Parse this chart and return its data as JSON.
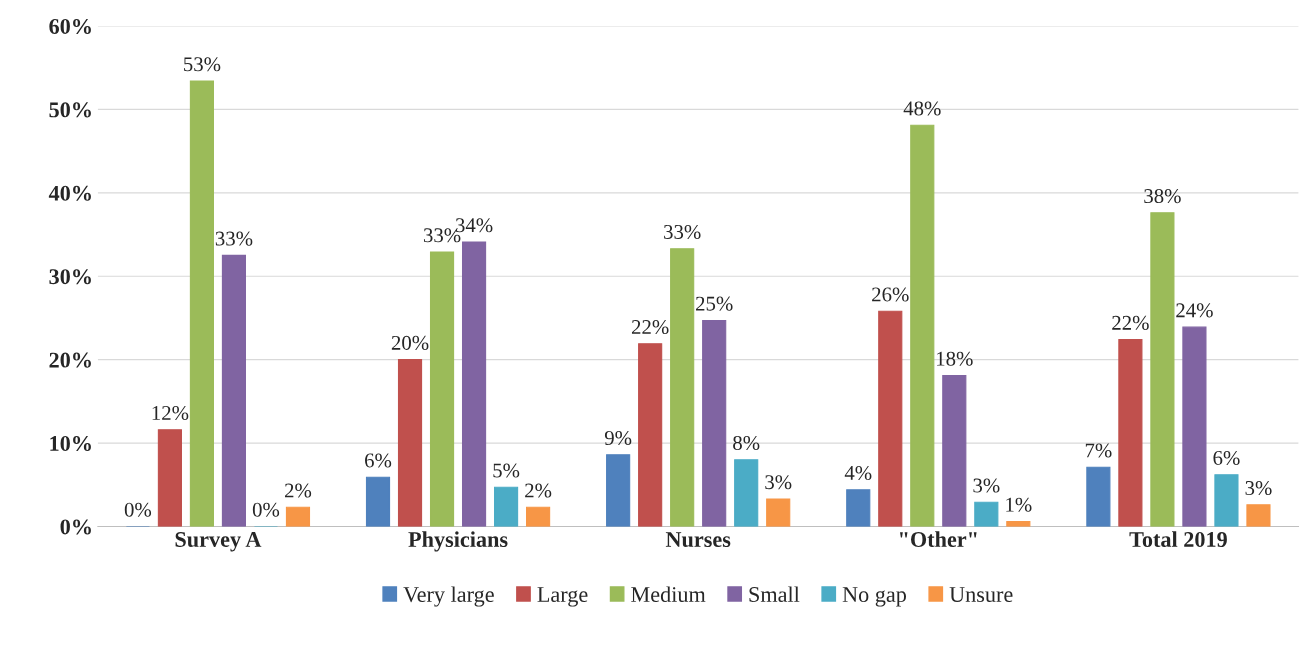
{
  "chart_data": {
    "type": "bar",
    "categories": [
      "Survey A",
      "Physicians",
      "Nurses",
      "\"Other\"",
      "Total 2019"
    ],
    "series": [
      {
        "name": "Very large",
        "color": "#4f81bd",
        "values": [
          0,
          5.9,
          8.6,
          4.4,
          7.1
        ],
        "value_labels": [
          "0%",
          "6%",
          "9%",
          "4%",
          "7%"
        ]
      },
      {
        "name": "Large",
        "color": "#c0504d",
        "values": [
          11.6,
          20.0,
          21.9,
          25.8,
          22.4
        ],
        "value_labels": [
          "12%",
          "20%",
          "22%",
          "26%",
          "22%"
        ]
      },
      {
        "name": "Medium",
        "color": "#9bbb59",
        "values": [
          53.4,
          32.9,
          33.3,
          48.1,
          37.6
        ],
        "value_labels": [
          "53%",
          "33%",
          "33%",
          "48%",
          "38%"
        ]
      },
      {
        "name": "Small",
        "color": "#8064a2",
        "values": [
          32.5,
          34.1,
          24.7,
          18.1,
          23.9
        ],
        "value_labels": [
          "33%",
          "34%",
          "25%",
          "18%",
          "24%"
        ]
      },
      {
        "name": "No gap",
        "color": "#4bacc6",
        "values": [
          0,
          4.7,
          8.0,
          2.9,
          6.2
        ],
        "value_labels": [
          "0%",
          "5%",
          "8%",
          "3%",
          "6%"
        ]
      },
      {
        "name": "Unsure",
        "color": "#f79646",
        "values": [
          2.3,
          2.3,
          3.3,
          0.6,
          2.6
        ],
        "value_labels": [
          "2%",
          "2%",
          "3%",
          "1%",
          "3%"
        ]
      }
    ],
    "ylim": [
      0,
      60
    ],
    "yticks": [
      {
        "value": 0,
        "label": "0%"
      },
      {
        "value": 10,
        "label": "10%"
      },
      {
        "value": 20,
        "label": "20%"
      },
      {
        "value": 30,
        "label": "30%"
      },
      {
        "value": 40,
        "label": "40%"
      },
      {
        "value": 50,
        "label": "50%"
      },
      {
        "value": 60,
        "label": "60%"
      }
    ],
    "grid": "y",
    "legend": "bottom"
  }
}
